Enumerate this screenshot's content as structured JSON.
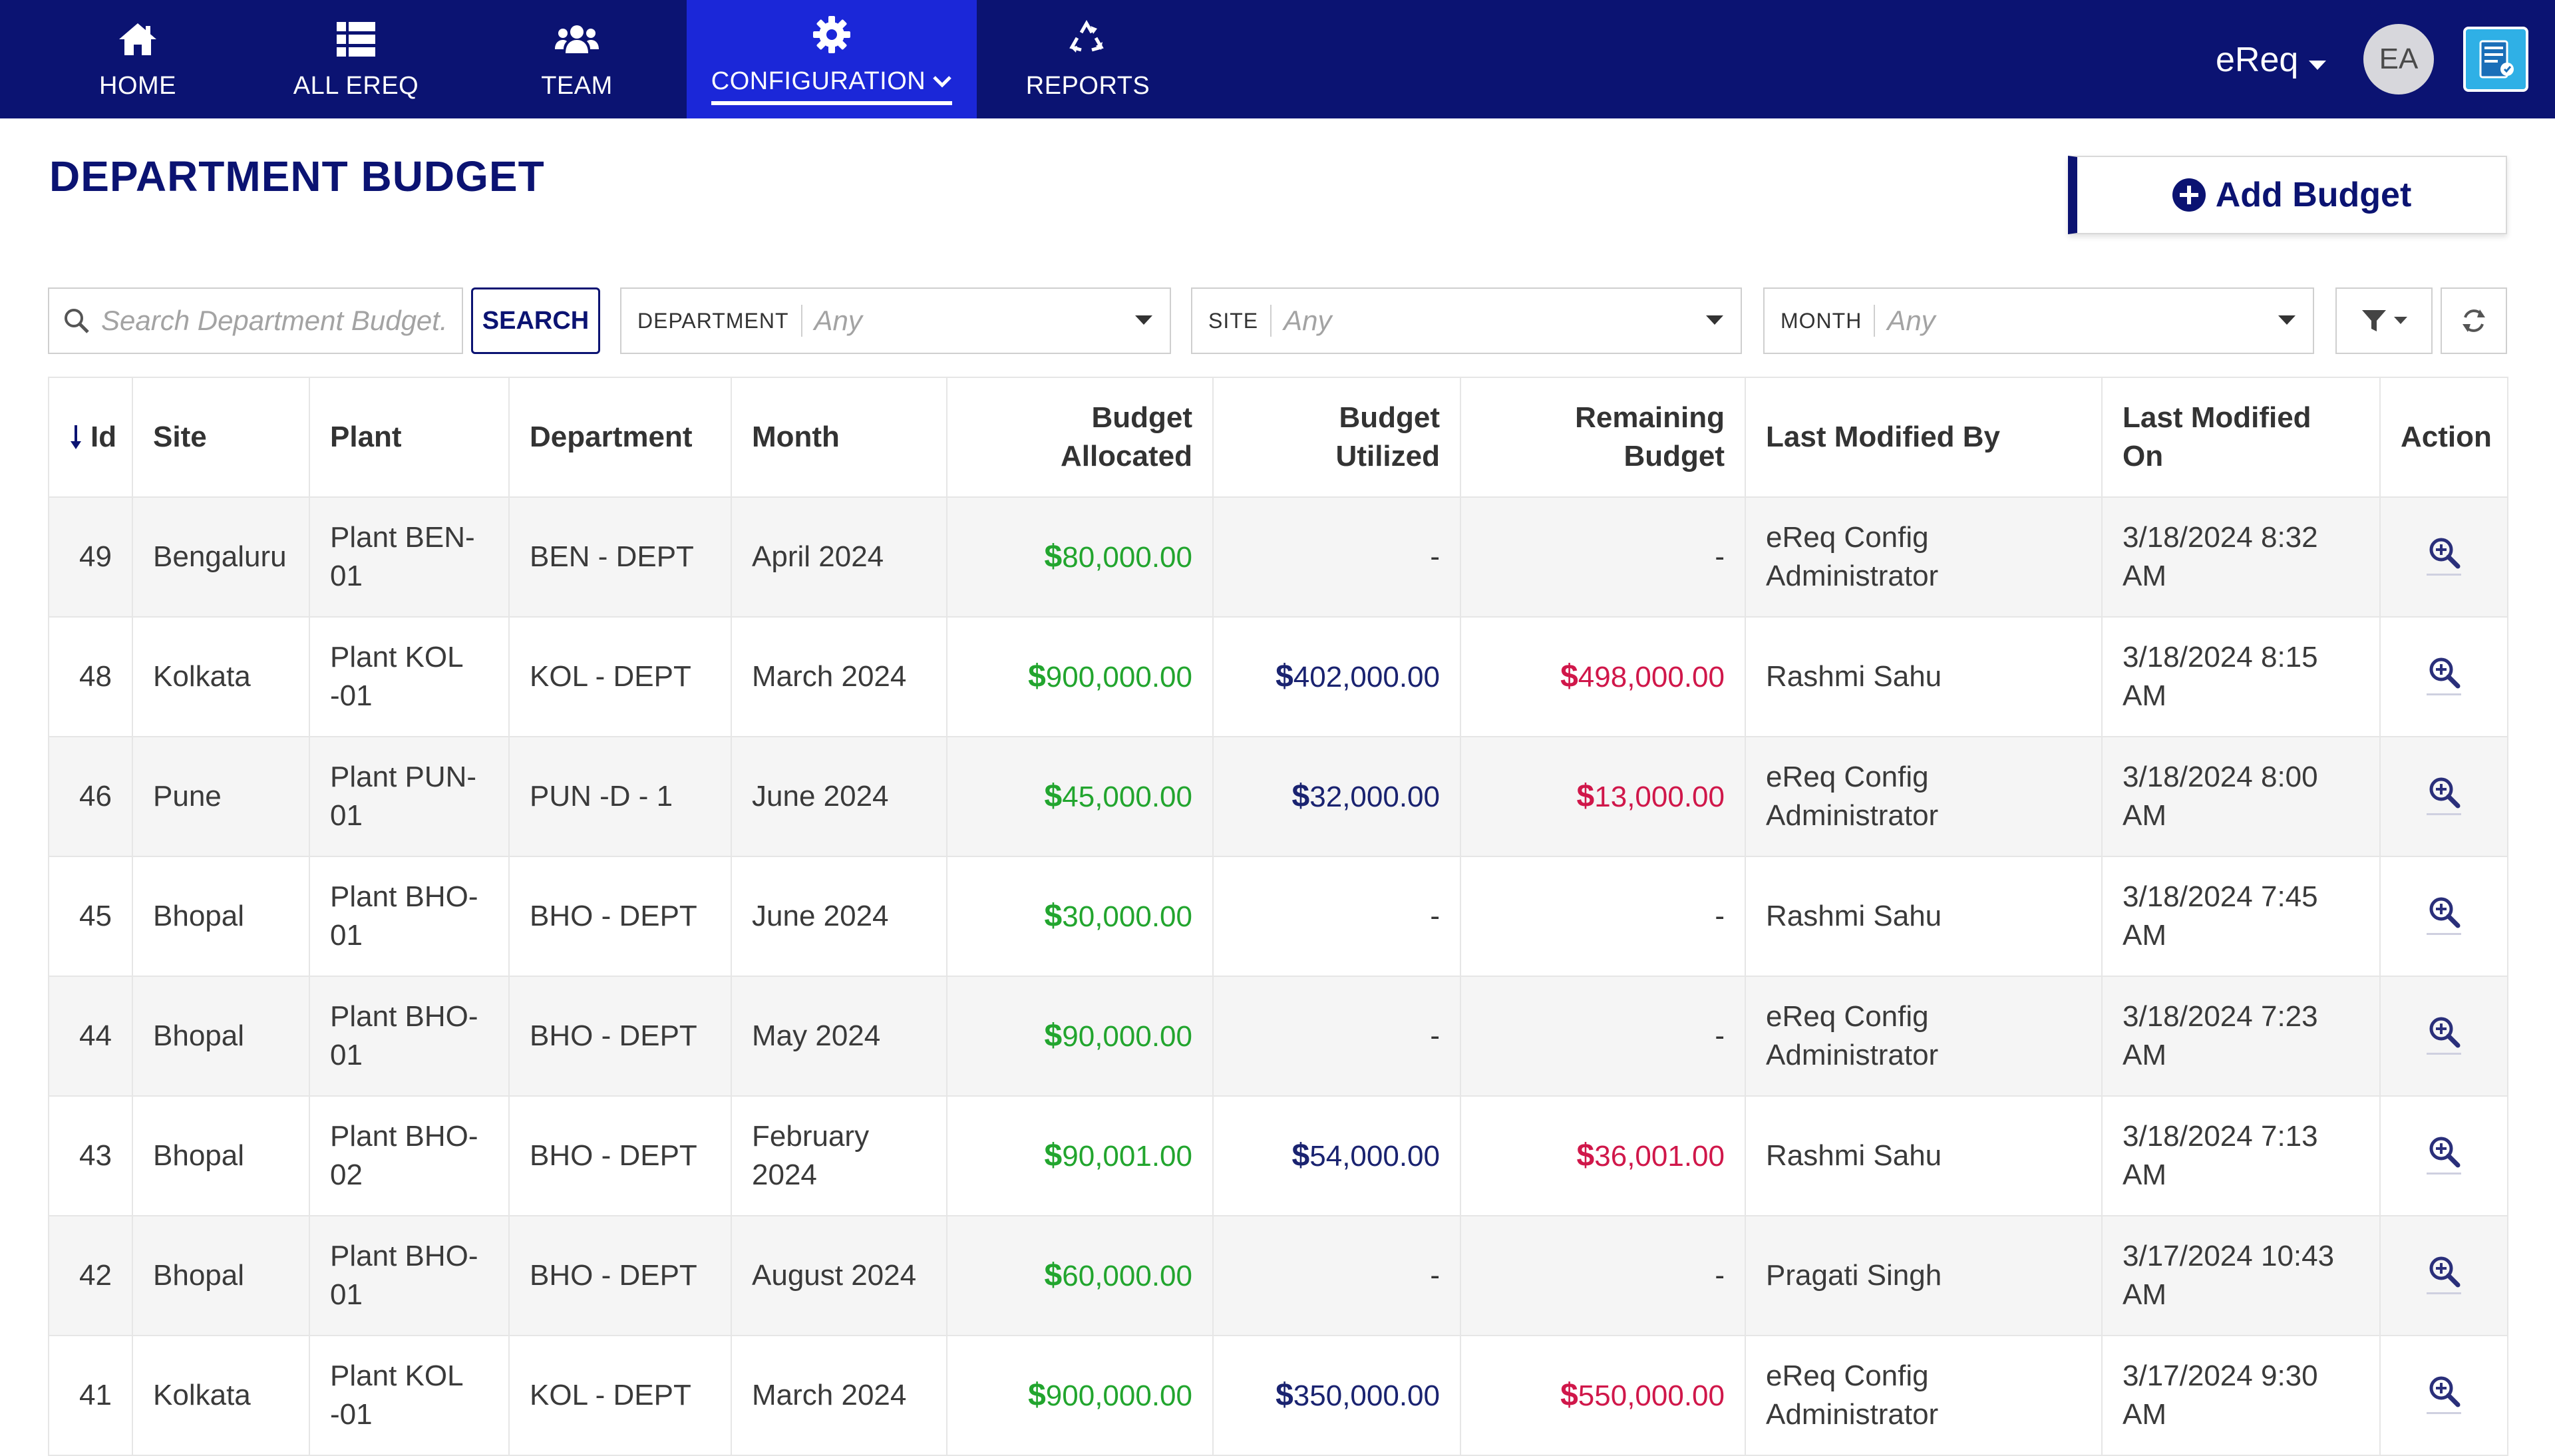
{
  "nav": {
    "items": [
      {
        "label": "HOME",
        "icon": "home-icon"
      },
      {
        "label": "ALL EREQ",
        "icon": "list-icon"
      },
      {
        "label": "TEAM",
        "icon": "team-icon"
      },
      {
        "label": "CONFIGURATION",
        "icon": "gear-icon",
        "active": true
      },
      {
        "label": "REPORTS",
        "icon": "recycle-icon"
      }
    ],
    "user_menu_label": "eReq",
    "avatar_initials": "EA"
  },
  "page": {
    "title": "DEPARTMENT BUDGET",
    "add_button_label": "Add Budget"
  },
  "filters": {
    "search_placeholder": "Search Department Budget...",
    "search_button_label": "SEARCH",
    "department": {
      "label": "DEPARTMENT",
      "value": "Any"
    },
    "site": {
      "label": "SITE",
      "value": "Any"
    },
    "month": {
      "label": "MONTH",
      "value": "Any"
    }
  },
  "table": {
    "headers": {
      "id": "Id",
      "site": "Site",
      "plant": "Plant",
      "department": "Department",
      "month": "Month",
      "budget_allocated_1": "Budget",
      "budget_allocated_2": "Allocated",
      "budget_utilized_1": "Budget",
      "budget_utilized_2": "Utilized",
      "remaining_budget_1": "Remaining",
      "remaining_budget_2": "Budget",
      "last_modified_by": "Last Modified By",
      "last_modified_on_1": "Last Modified",
      "last_modified_on_2": "On",
      "action": "Action"
    },
    "rows": [
      {
        "id": "49",
        "site": "Bengaluru",
        "plant": "Plant BEN-01",
        "department": "BEN - DEPT",
        "month": "April 2024",
        "allocated": "80,000.00",
        "utilized": "-",
        "remaining": "-",
        "modified_by": "eReq Config Administrator",
        "modified_on": "3/18/2024 8:32 AM"
      },
      {
        "id": "48",
        "site": "Kolkata",
        "plant": "Plant KOL -01",
        "department": "KOL - DEPT",
        "month": "March 2024",
        "allocated": "900,000.00",
        "utilized": "402,000.00",
        "remaining": "498,000.00",
        "modified_by": "Rashmi Sahu",
        "modified_on": "3/18/2024 8:15 AM"
      },
      {
        "id": "46",
        "site": "Pune",
        "plant": "Plant PUN-01",
        "department": "PUN -D - 1",
        "month": "June 2024",
        "allocated": "45,000.00",
        "utilized": "32,000.00",
        "remaining": "13,000.00",
        "modified_by": "eReq Config Administrator",
        "modified_on": "3/18/2024 8:00 AM"
      },
      {
        "id": "45",
        "site": "Bhopal",
        "plant": "Plant BHO-01",
        "department": "BHO - DEPT",
        "month": "June 2024",
        "allocated": "30,000.00",
        "utilized": "-",
        "remaining": "-",
        "modified_by": "Rashmi Sahu",
        "modified_on": "3/18/2024 7:45 AM"
      },
      {
        "id": "44",
        "site": "Bhopal",
        "plant": "Plant BHO-01",
        "department": "BHO - DEPT",
        "month": "May 2024",
        "allocated": "90,000.00",
        "utilized": "-",
        "remaining": "-",
        "modified_by": "eReq Config Administrator",
        "modified_on": "3/18/2024 7:23 AM"
      },
      {
        "id": "43",
        "site": "Bhopal",
        "plant": "Plant BHO-02",
        "department": "BHO - DEPT",
        "month": "February 2024",
        "allocated": "90,001.00",
        "utilized": "54,000.00",
        "remaining": "36,001.00",
        "modified_by": "Rashmi Sahu",
        "modified_on": "3/18/2024 7:13 AM"
      },
      {
        "id": "42",
        "site": "Bhopal",
        "plant": "Plant BHO-01",
        "department": "BHO - DEPT",
        "month": "August 2024",
        "allocated": "60,000.00",
        "utilized": "-",
        "remaining": "-",
        "modified_by": "Pragati Singh",
        "modified_on": "3/17/2024 10:43 AM"
      },
      {
        "id": "41",
        "site": "Kolkata",
        "plant": "Plant KOL -01",
        "department": "KOL - DEPT",
        "month": "March 2024",
        "allocated": "900,000.00",
        "utilized": "350,000.00",
        "remaining": "550,000.00",
        "modified_by": "eReq Config Administrator",
        "modified_on": "3/17/2024 9:30 AM"
      }
    ],
    "currency_symbol": "$"
  },
  "colors": {
    "brand_navy": "#0b1372",
    "nav_active": "#1b27d8",
    "allocated_green": "#22a52e",
    "utilized_navy": "#1a2370",
    "remaining_red": "#d0174a"
  }
}
